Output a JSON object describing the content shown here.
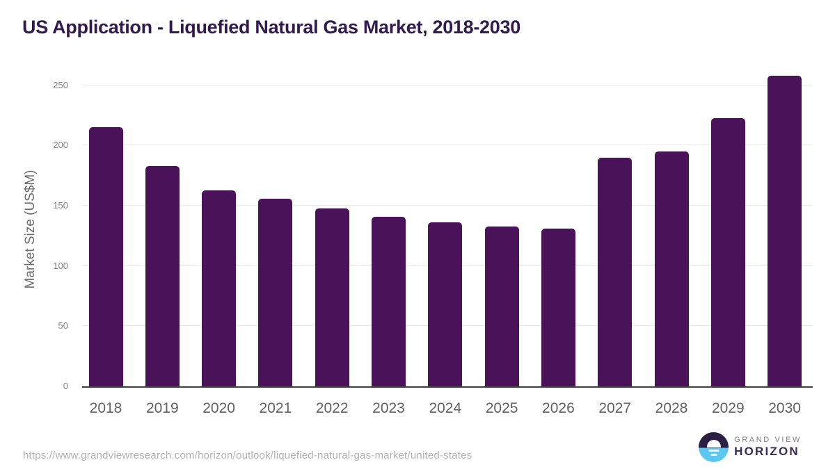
{
  "title": "US Application - Liquefied Natural Gas Market, 2018-2030",
  "chart_data": {
    "type": "bar",
    "title": "US Application - Liquefied Natural Gas Market, 2018-2030",
    "categories": [
      "2018",
      "2019",
      "2020",
      "2021",
      "2022",
      "2023",
      "2024",
      "2025",
      "2026",
      "2027",
      "2028",
      "2029",
      "2030"
    ],
    "values": [
      215,
      183,
      163,
      156,
      148,
      141,
      136,
      133,
      131,
      190,
      195,
      223,
      258
    ],
    "xlabel": "",
    "ylabel": "Market Size (US$M)",
    "ylim": [
      0,
      250
    ],
    "yticks": [
      0,
      50,
      100,
      150,
      200,
      250
    ],
    "grid": true,
    "legend": "none",
    "bar_color": "#4a1259"
  },
  "footer": {
    "source_url": "https://www.grandviewresearch.com/horizon/outlook/liquefied-natural-gas-market/united-states",
    "logo": {
      "line1": "GRAND VIEW",
      "line2": "HORIZON"
    }
  },
  "colors": {
    "title": "#321a4e",
    "bar": "#4a1259",
    "logo_dark": "#2b1f44",
    "logo_blue": "#5bc6f2",
    "logo_wordmark": "#3a2c55"
  }
}
